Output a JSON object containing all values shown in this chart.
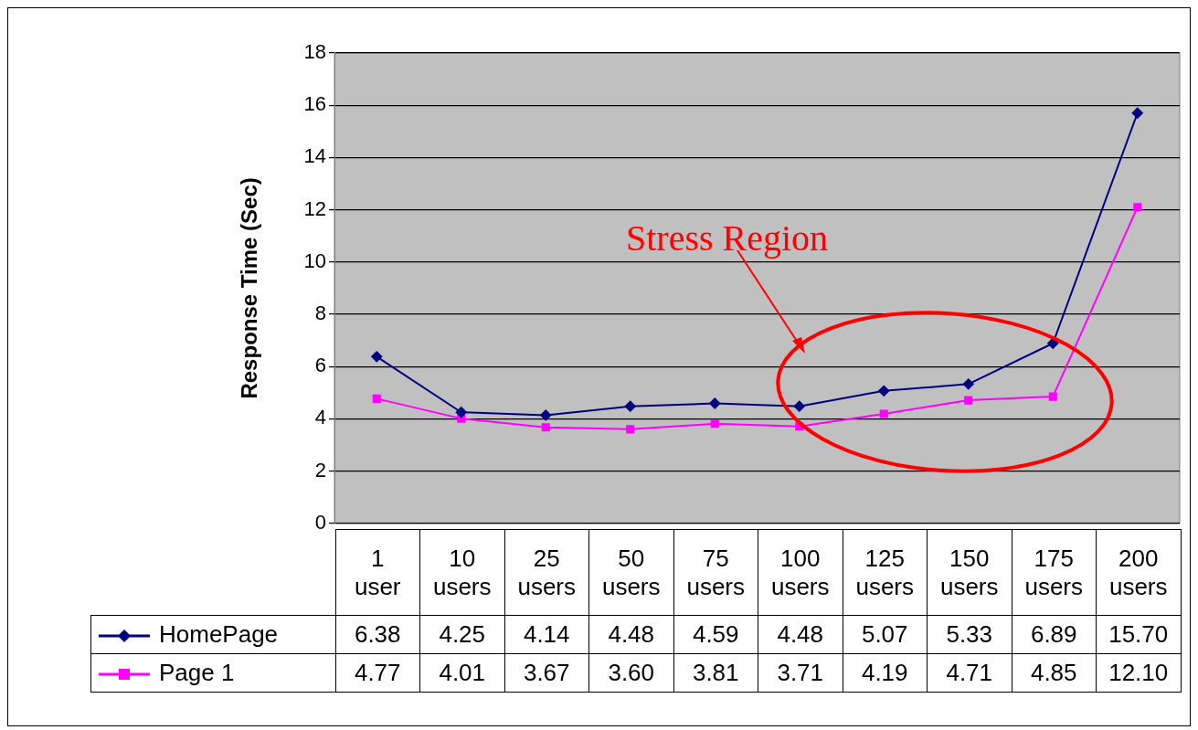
{
  "chart_data": {
    "type": "line",
    "ylabel": "Response Time (Sec)",
    "categories": [
      "1 user",
      "10 users",
      "25 users",
      "50 users",
      "75 users",
      "100 users",
      "125 users",
      "150 users",
      "175 users",
      "200 users"
    ],
    "series": [
      {
        "name": "HomePage",
        "color": "#000080",
        "marker": "diamond",
        "values": [
          6.38,
          4.25,
          4.14,
          4.48,
          4.59,
          4.48,
          5.07,
          5.33,
          6.89,
          15.7
        ],
        "value_labels": [
          "6.38",
          "4.25",
          "4.14",
          "4.48",
          "4.59",
          "4.48",
          "5.07",
          "5.33",
          "6.89",
          "15.70"
        ]
      },
      {
        "name": "Page 1",
        "color": "#ff00ff",
        "marker": "square",
        "values": [
          4.77,
          4.01,
          3.67,
          3.6,
          3.81,
          3.71,
          4.19,
          4.71,
          4.85,
          12.1
        ],
        "value_labels": [
          "4.77",
          "4.01",
          "3.67",
          "3.60",
          "3.81",
          "3.71",
          "4.19",
          "4.71",
          "4.85",
          "12.10"
        ]
      }
    ],
    "ylim": [
      0,
      18
    ],
    "yticks": [
      0,
      2,
      4,
      6,
      8,
      10,
      12,
      14,
      16,
      18
    ],
    "grid": "y",
    "legend": "bottom",
    "annotations": [
      "Stress Region"
    ]
  }
}
